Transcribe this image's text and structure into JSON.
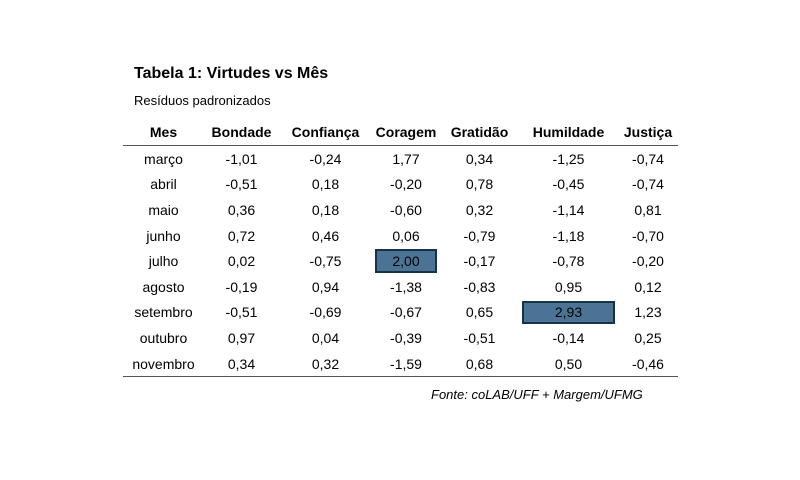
{
  "title": "Tabela 1: Virtudes vs Mês",
  "subtitle": "Resíduos padronizados",
  "table": {
    "headers": [
      "Mes",
      "Bondade",
      "Confiança",
      "Coragem",
      "Gratidão",
      "Humildade",
      "Justiça"
    ],
    "rows": [
      [
        "março",
        "-1,01",
        "-0,24",
        "1,77",
        "0,34",
        "-1,25",
        "-0,74"
      ],
      [
        "abril",
        "-0,51",
        "0,18",
        "-0,20",
        "0,78",
        "-0,45",
        "-0,74"
      ],
      [
        "maio",
        "0,36",
        "0,18",
        "-0,60",
        "0,32",
        "-1,14",
        "0,81"
      ],
      [
        "junho",
        "0,72",
        "0,46",
        "0,06",
        "-0,79",
        "-1,18",
        "-0,70"
      ],
      [
        "julho",
        "0,02",
        "-0,75",
        "2,00",
        "-0,17",
        "-0,78",
        "-0,20"
      ],
      [
        "agosto",
        "-0,19",
        "0,94",
        "-1,38",
        "-0,83",
        "0,95",
        "0,12"
      ],
      [
        "setembro",
        "-0,51",
        "-0,69",
        "-0,67",
        "0,65",
        "2,93",
        "1,23"
      ],
      [
        "outubro",
        "0,97",
        "0,04",
        "-0,39",
        "-0,51",
        "-0,14",
        "0,25"
      ],
      [
        "novembro",
        "0,34",
        "0,32",
        "-1,59",
        "0,68",
        "0,50",
        "-0,46"
      ]
    ],
    "highlighted_cells": [
      {
        "row": 4,
        "col": 3
      },
      {
        "row": 6,
        "col": 5
      }
    ],
    "highlight_color": "#4a7396",
    "highlight_border_color": "#17334a"
  },
  "source": "Fonte: coLAB/UFF + Margem/UFMG"
}
